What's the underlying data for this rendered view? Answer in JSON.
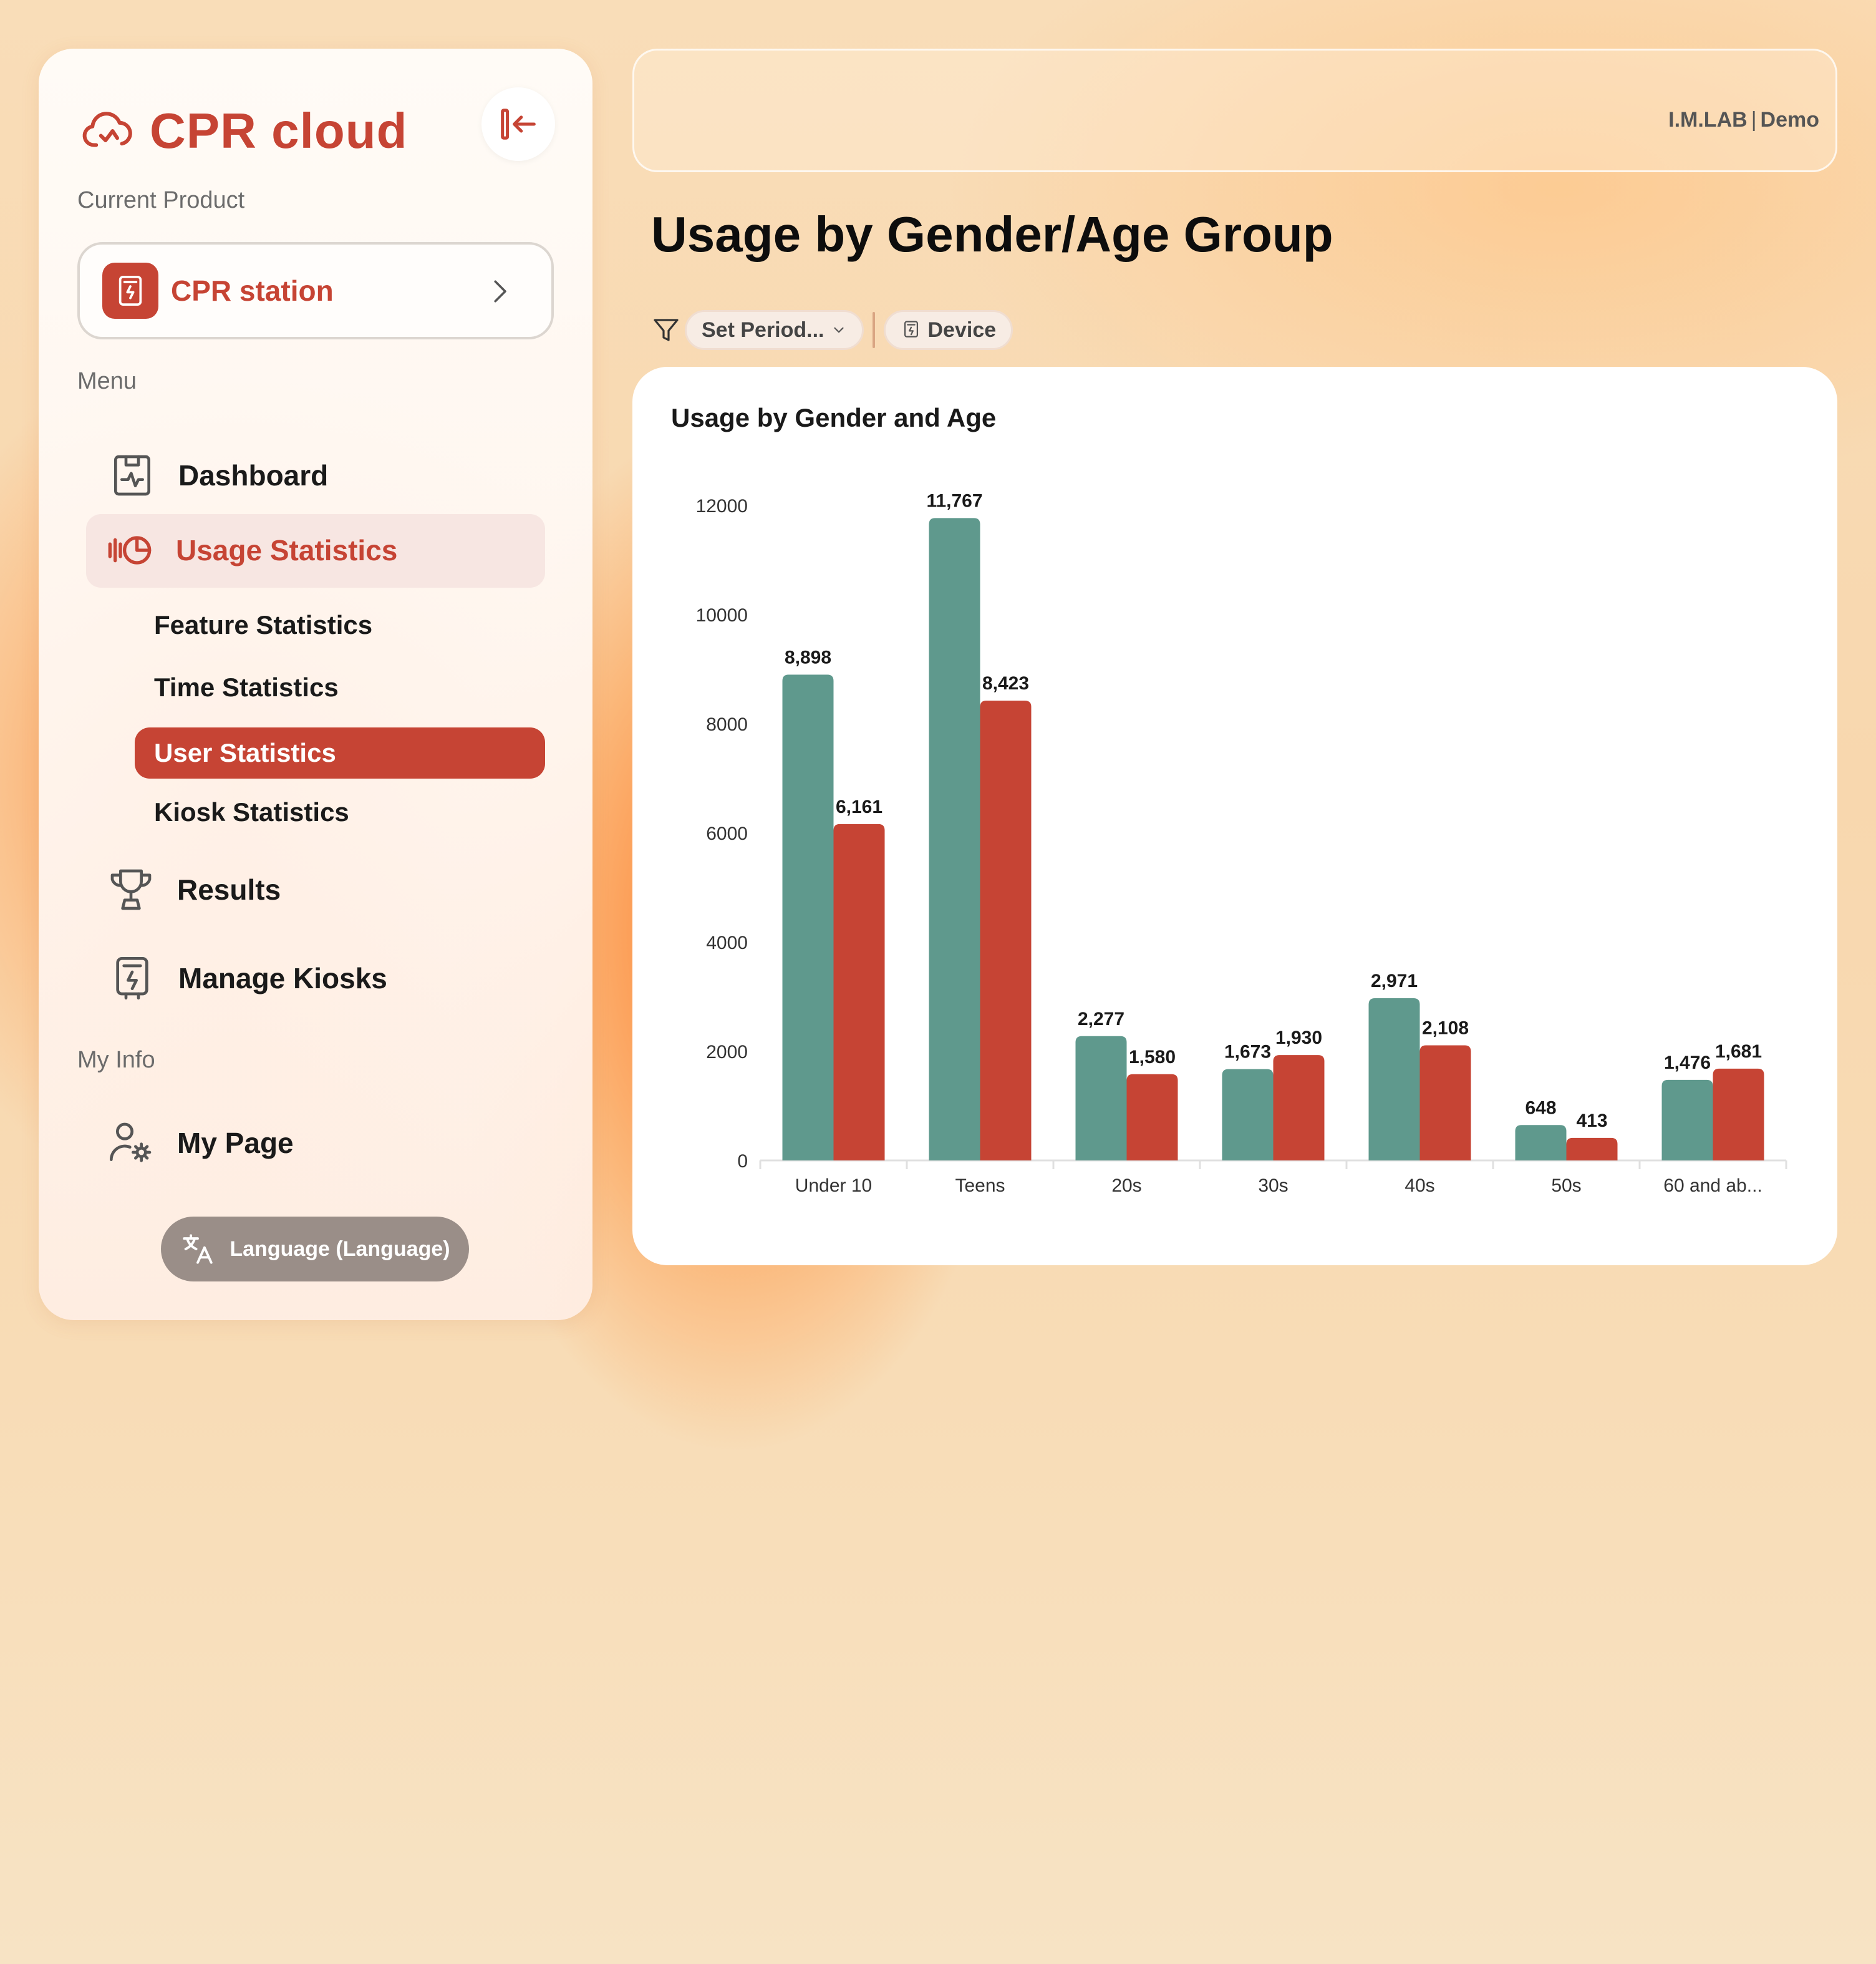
{
  "sidebar": {
    "logo": "CPR cloud",
    "current_product_label": "Current Product",
    "product_name": "CPR station",
    "menu_label": "Menu",
    "items": [
      {
        "label": "Dashboard"
      },
      {
        "label": "Usage Statistics"
      },
      {
        "label": "Results"
      },
      {
        "label": "Manage Kiosks"
      }
    ],
    "sub_items": [
      {
        "label": "Feature Statistics"
      },
      {
        "label": "Time Statistics"
      },
      {
        "label": "User Statistics"
      },
      {
        "label": "Kiosk Statistics"
      }
    ],
    "my_info_label": "My Info",
    "my_page": "My Page",
    "language_button": "Language (Language)"
  },
  "header": {
    "org": "I.M.LAB",
    "separator": "|",
    "user": "Demo"
  },
  "page": {
    "title": "Usage by Gender/Age Group",
    "filters": {
      "period": "Set Period...",
      "device": "Device"
    }
  },
  "colors": {
    "accent": "#c64434",
    "series_teal": "#5f998d",
    "series_red": "#c64434"
  },
  "chart_data": {
    "type": "bar",
    "title": "Usage by Gender and Age",
    "categories": [
      "Under 10",
      "Teens",
      "20s",
      "30s",
      "40s",
      "50s",
      "60 and ab..."
    ],
    "series": [
      {
        "values": [
          8898,
          11767,
          2277,
          1673,
          2971,
          648,
          1476
        ]
      },
      {
        "values": [
          6161,
          8423,
          1580,
          1930,
          2108,
          413,
          1681
        ]
      }
    ],
    "data_labels": [
      [
        "8,898",
        "11,767",
        "2,277",
        "1,673",
        "2,971",
        "648",
        "1,476"
      ],
      [
        "6,161",
        "8,423",
        "1,580",
        "1,930",
        "2,108",
        "413",
        "1,681"
      ]
    ],
    "y_ticks": [
      "0",
      "2000",
      "4000",
      "6000",
      "8000",
      "10000",
      "12000"
    ],
    "ylim": [
      0,
      12000
    ],
    "grid": false,
    "legend": "none"
  }
}
